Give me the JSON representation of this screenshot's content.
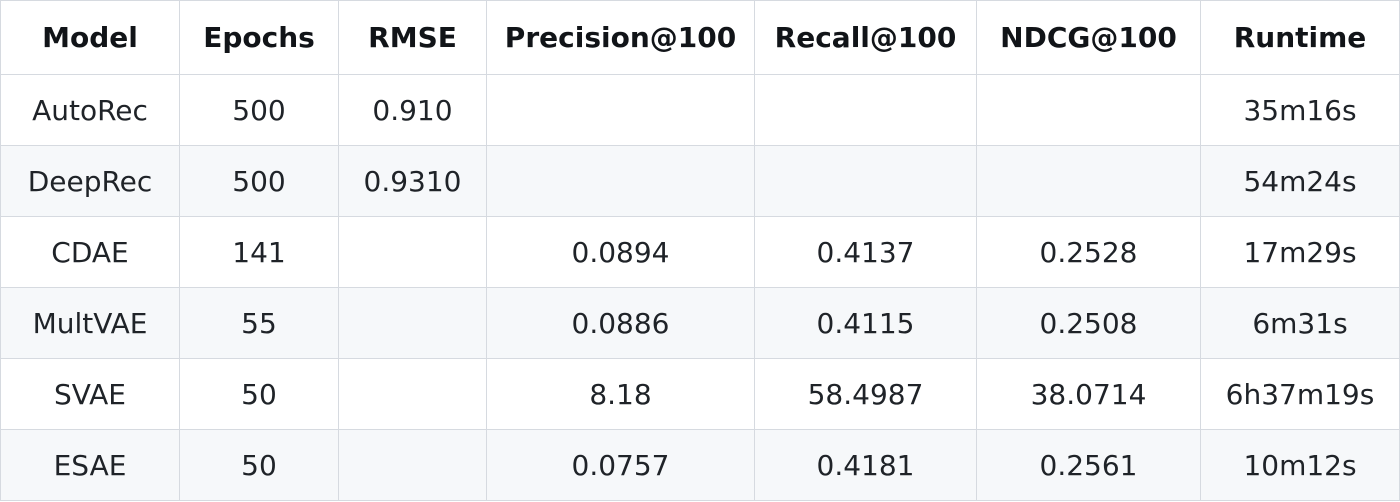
{
  "table": {
    "headers": [
      "Model",
      "Epochs",
      "RMSE",
      "Precision@100",
      "Recall@100",
      "NDCG@100",
      "Runtime"
    ],
    "rows": [
      [
        "AutoRec",
        "500",
        "0.910",
        "",
        "",
        "",
        "35m16s"
      ],
      [
        "DeepRec",
        "500",
        "0.9310",
        "",
        "",
        "",
        "54m24s"
      ],
      [
        "CDAE",
        "141",
        "",
        "0.0894",
        "0.4137",
        "0.2528",
        "17m29s"
      ],
      [
        "MultVAE",
        "55",
        "",
        "0.0886",
        "0.4115",
        "0.2508",
        "6m31s"
      ],
      [
        "SVAE",
        "50",
        "",
        "8.18",
        "58.4987",
        "38.0714",
        "6h37m19s"
      ],
      [
        "ESAE",
        "50",
        "",
        "0.0757",
        "0.4181",
        "0.2561",
        "10m12s"
      ]
    ]
  },
  "colors": {
    "border": "#d6dae0",
    "stripe": "#f6f8fa",
    "text": "#1f2328"
  }
}
